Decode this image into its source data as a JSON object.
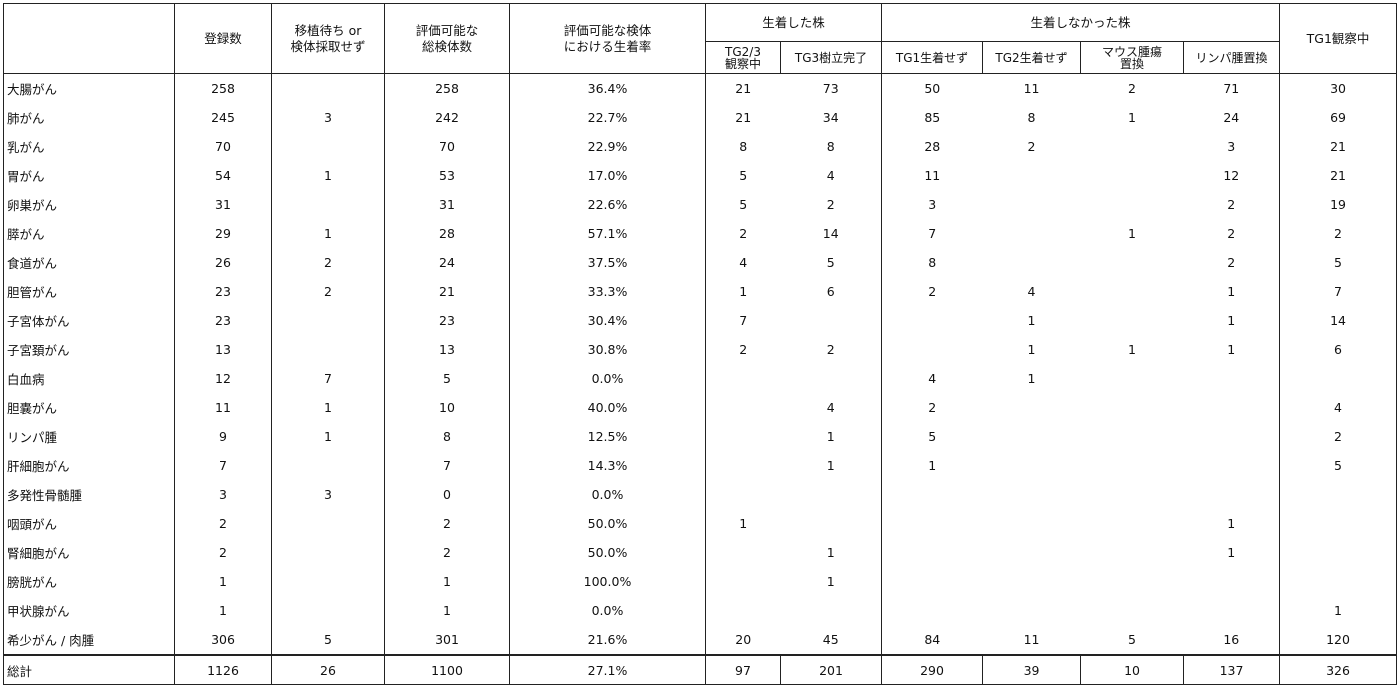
{
  "headers": {
    "disease": "",
    "registered": "登録数",
    "waiting_line1": "移植待ち or",
    "waiting_line2": "検体採取せず",
    "evaluable_line1": "評価可能な",
    "evaluable_line2": "総検体数",
    "rate_line1": "評価可能な検体",
    "rate_line2": "における生着率",
    "engrafted_group": "生着した株",
    "tg23_line1": "TG2/3",
    "tg23_line2": "観察中",
    "tg3": "TG3樹立完了",
    "not_engrafted_group": "生着しなかった株",
    "tg1_none": "TG1生着せず",
    "tg2_none": "TG2生着せず",
    "mouse_line1": "マウス腫瘍",
    "mouse_line2": "置換",
    "lymph_replace": "リンパ腫置換",
    "tg1_obs": "TG1観察中"
  },
  "rows": [
    {
      "name": "大腸がん",
      "reg": "258",
      "wait": "",
      "eval": "258",
      "rate": "36.4%",
      "tg23": "21",
      "tg3": "73",
      "tg1n": "50",
      "tg2n": "11",
      "mouse": "2",
      "lymph": "71",
      "tg1o": "30"
    },
    {
      "name": "肺がん",
      "reg": "245",
      "wait": "3",
      "eval": "242",
      "rate": "22.7%",
      "tg23": "21",
      "tg3": "34",
      "tg1n": "85",
      "tg2n": "8",
      "mouse": "1",
      "lymph": "24",
      "tg1o": "69"
    },
    {
      "name": "乳がん",
      "reg": "70",
      "wait": "",
      "eval": "70",
      "rate": "22.9%",
      "tg23": "8",
      "tg3": "8",
      "tg1n": "28",
      "tg2n": "2",
      "mouse": "",
      "lymph": "3",
      "tg1o": "21"
    },
    {
      "name": "胃がん",
      "reg": "54",
      "wait": "1",
      "eval": "53",
      "rate": "17.0%",
      "tg23": "5",
      "tg3": "4",
      "tg1n": "11",
      "tg2n": "",
      "mouse": "",
      "lymph": "12",
      "tg1o": "21"
    },
    {
      "name": "卵巣がん",
      "reg": "31",
      "wait": "",
      "eval": "31",
      "rate": "22.6%",
      "tg23": "5",
      "tg3": "2",
      "tg1n": "3",
      "tg2n": "",
      "mouse": "",
      "lymph": "2",
      "tg1o": "19"
    },
    {
      "name": "膵がん",
      "reg": "29",
      "wait": "1",
      "eval": "28",
      "rate": "57.1%",
      "tg23": "2",
      "tg3": "14",
      "tg1n": "7",
      "tg2n": "",
      "mouse": "1",
      "lymph": "2",
      "tg1o": "2"
    },
    {
      "name": "食道がん",
      "reg": "26",
      "wait": "2",
      "eval": "24",
      "rate": "37.5%",
      "tg23": "4",
      "tg3": "5",
      "tg1n": "8",
      "tg2n": "",
      "mouse": "",
      "lymph": "2",
      "tg1o": "5"
    },
    {
      "name": "胆管がん",
      "reg": "23",
      "wait": "2",
      "eval": "21",
      "rate": "33.3%",
      "tg23": "1",
      "tg3": "6",
      "tg1n": "2",
      "tg2n": "4",
      "mouse": "",
      "lymph": "1",
      "tg1o": "7"
    },
    {
      "name": "子宮体がん",
      "reg": "23",
      "wait": "",
      "eval": "23",
      "rate": "30.4%",
      "tg23": "7",
      "tg3": "",
      "tg1n": "",
      "tg2n": "1",
      "mouse": "",
      "lymph": "1",
      "tg1o": "14"
    },
    {
      "name": "子宮頚がん",
      "reg": "13",
      "wait": "",
      "eval": "13",
      "rate": "30.8%",
      "tg23": "2",
      "tg3": "2",
      "tg1n": "",
      "tg2n": "1",
      "mouse": "1",
      "lymph": "1",
      "tg1o": "6"
    },
    {
      "name": "白血病",
      "reg": "12",
      "wait": "7",
      "eval": "5",
      "rate": "0.0%",
      "tg23": "",
      "tg3": "",
      "tg1n": "4",
      "tg2n": "1",
      "mouse": "",
      "lymph": "",
      "tg1o": ""
    },
    {
      "name": "胆嚢がん",
      "reg": "11",
      "wait": "1",
      "eval": "10",
      "rate": "40.0%",
      "tg23": "",
      "tg3": "4",
      "tg1n": "2",
      "tg2n": "",
      "mouse": "",
      "lymph": "",
      "tg1o": "4"
    },
    {
      "name": "リンパ腫",
      "reg": "9",
      "wait": "1",
      "eval": "8",
      "rate": "12.5%",
      "tg23": "",
      "tg3": "1",
      "tg1n": "5",
      "tg2n": "",
      "mouse": "",
      "lymph": "",
      "tg1o": "2"
    },
    {
      "name": "肝細胞がん",
      "reg": "7",
      "wait": "",
      "eval": "7",
      "rate": "14.3%",
      "tg23": "",
      "tg3": "1",
      "tg1n": "1",
      "tg2n": "",
      "mouse": "",
      "lymph": "",
      "tg1o": "5"
    },
    {
      "name": "多発性骨髄腫",
      "reg": "3",
      "wait": "3",
      "eval": "0",
      "rate": "0.0%",
      "tg23": "",
      "tg3": "",
      "tg1n": "",
      "tg2n": "",
      "mouse": "",
      "lymph": "",
      "tg1o": ""
    },
    {
      "name": "咽頭がん",
      "reg": "2",
      "wait": "",
      "eval": "2",
      "rate": "50.0%",
      "tg23": "1",
      "tg3": "",
      "tg1n": "",
      "tg2n": "",
      "mouse": "",
      "lymph": "1",
      "tg1o": ""
    },
    {
      "name": "腎細胞がん",
      "reg": "2",
      "wait": "",
      "eval": "2",
      "rate": "50.0%",
      "tg23": "",
      "tg3": "1",
      "tg1n": "",
      "tg2n": "",
      "mouse": "",
      "lymph": "1",
      "tg1o": ""
    },
    {
      "name": "膀胱がん",
      "reg": "1",
      "wait": "",
      "eval": "1",
      "rate": "100.0%",
      "tg23": "",
      "tg3": "1",
      "tg1n": "",
      "tg2n": "",
      "mouse": "",
      "lymph": "",
      "tg1o": ""
    },
    {
      "name": "甲状腺がん",
      "reg": "1",
      "wait": "",
      "eval": "1",
      "rate": "0.0%",
      "tg23": "",
      "tg3": "",
      "tg1n": "",
      "tg2n": "",
      "mouse": "",
      "lymph": "",
      "tg1o": "1"
    },
    {
      "name": "希少がん / 肉腫",
      "reg": "306",
      "wait": "5",
      "eval": "301",
      "rate": "21.6%",
      "tg23": "20",
      "tg3": "45",
      "tg1n": "84",
      "tg2n": "11",
      "mouse": "5",
      "lymph": "16",
      "tg1o": "120"
    }
  ],
  "total": {
    "name": "総計",
    "reg": "1126",
    "wait": "26",
    "eval": "1100",
    "rate": "27.1%",
    "tg23": "97",
    "tg3": "201",
    "tg1n": "290",
    "tg2n": "39",
    "mouse": "10",
    "lymph": "137",
    "tg1o": "326"
  }
}
